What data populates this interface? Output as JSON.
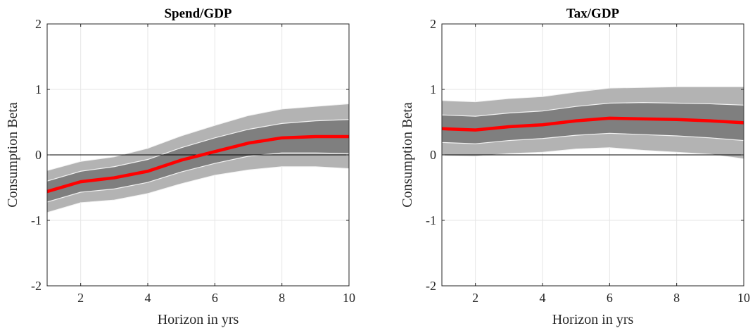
{
  "colors": {
    "background": "#ffffff",
    "outer_band": "#b3b3b3",
    "inner_band": "#7f7f7f",
    "band_edge": "#f2f2f2",
    "line": "#ff0000",
    "zero_line": "#000000",
    "grid": "#e6e6e6",
    "axis": "#262626"
  },
  "chart_data": [
    {
      "type": "line",
      "title": "Spend/GDP",
      "xlabel": "Horizon in yrs",
      "ylabel": "Consumption Beta",
      "xlim": [
        1,
        10
      ],
      "ylim": [
        -2,
        2
      ],
      "xticks": [
        2,
        4,
        6,
        8,
        10
      ],
      "yticks": [
        -2,
        -1,
        0,
        1,
        2
      ],
      "grid": true,
      "zero_line": true,
      "x": [
        1,
        2,
        3,
        4,
        5,
        6,
        7,
        8,
        9,
        10
      ],
      "series": [
        {
          "values": [
            -0.56,
            -0.41,
            -0.35,
            -0.25,
            -0.08,
            0.05,
            0.18,
            0.26,
            0.28,
            0.28
          ],
          "band68": {
            "lower": [
              -0.72,
              -0.57,
              -0.52,
              -0.42,
              -0.26,
              -0.13,
              -0.02,
              0.03,
              0.03,
              0.02
            ],
            "upper": [
              -0.4,
              -0.25,
              -0.18,
              -0.07,
              0.11,
              0.26,
              0.39,
              0.48,
              0.52,
              0.54
            ]
          },
          "band90": {
            "lower": [
              -0.88,
              -0.73,
              -0.69,
              -0.59,
              -0.44,
              -0.31,
              -0.23,
              -0.18,
              -0.18,
              -0.21
            ],
            "upper": [
              -0.24,
              -0.1,
              -0.03,
              0.1,
              0.29,
              0.45,
              0.6,
              0.7,
              0.74,
              0.78
            ]
          }
        }
      ]
    },
    {
      "type": "line",
      "title": "Tax/GDP",
      "xlabel": "Horizon in yrs",
      "ylabel": "Consumption Beta",
      "xlim": [
        1,
        10
      ],
      "ylim": [
        -2,
        2
      ],
      "xticks": [
        2,
        4,
        6,
        8,
        10
      ],
      "yticks": [
        -2,
        -1,
        0,
        1,
        2
      ],
      "grid": true,
      "zero_line": true,
      "x": [
        1,
        2,
        3,
        4,
        5,
        6,
        7,
        8,
        9,
        10
      ],
      "series": [
        {
          "values": [
            0.4,
            0.38,
            0.43,
            0.46,
            0.52,
            0.56,
            0.55,
            0.54,
            0.52,
            0.49
          ],
          "band68": {
            "lower": [
              0.19,
              0.17,
              0.22,
              0.25,
              0.3,
              0.33,
              0.31,
              0.29,
              0.26,
              0.22
            ],
            "upper": [
              0.61,
              0.59,
              0.64,
              0.67,
              0.74,
              0.79,
              0.8,
              0.79,
              0.78,
              0.76
            ]
          },
          "band90": {
            "lower": [
              -0.01,
              -0.02,
              0.02,
              0.04,
              0.09,
              0.11,
              0.07,
              0.04,
              0.01,
              -0.06
            ],
            "upper": [
              0.83,
              0.81,
              0.86,
              0.89,
              0.96,
              1.02,
              1.03,
              1.04,
              1.04,
              1.04
            ]
          }
        }
      ]
    }
  ]
}
